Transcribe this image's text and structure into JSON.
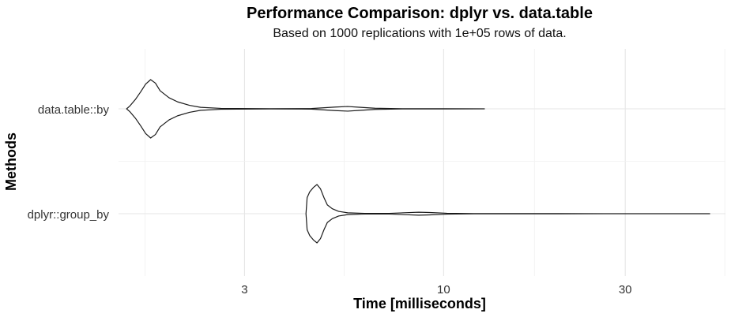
{
  "chart_data": {
    "type": "violin",
    "title": "Performance Comparison: dplyr vs. data.table",
    "subtitle": "Based on 1000 replications with 1e+05 rows of data.",
    "xlabel": "Time [milliseconds]",
    "ylabel": "Methods",
    "x_scale": "log10",
    "xlim": [
      1.4,
      55
    ],
    "x_ticks": [
      {
        "value": 3,
        "label": "3"
      },
      {
        "value": 10,
        "label": "10"
      },
      {
        "value": 30,
        "label": "30"
      }
    ],
    "categories": [
      "data.table::by",
      "dplyr::group_by"
    ],
    "series": [
      {
        "category": "data.table::by",
        "min": 1.47,
        "max": 12.8,
        "profile": [
          [
            1.47,
            0
          ],
          [
            1.5,
            0.1
          ],
          [
            1.55,
            0.32
          ],
          [
            1.6,
            0.58
          ],
          [
            1.65,
            0.85
          ],
          [
            1.7,
            1.0
          ],
          [
            1.75,
            0.88
          ],
          [
            1.8,
            0.62
          ],
          [
            1.9,
            0.38
          ],
          [
            2.0,
            0.24
          ],
          [
            2.15,
            0.12
          ],
          [
            2.3,
            0.05
          ],
          [
            2.6,
            0.015
          ],
          [
            3.5,
            0.005
          ],
          [
            4.5,
            0.01
          ],
          [
            5.2,
            0.06
          ],
          [
            5.6,
            0.08
          ],
          [
            6.0,
            0.055
          ],
          [
            6.6,
            0.02
          ],
          [
            7.5,
            0.006
          ],
          [
            10,
            0.004
          ],
          [
            12.8,
            0
          ]
        ]
      },
      {
        "category": "dplyr::group_by",
        "min": 4.35,
        "max": 50,
        "profile": [
          [
            4.35,
            0
          ],
          [
            4.38,
            0.55
          ],
          [
            4.45,
            0.75
          ],
          [
            4.55,
            0.9
          ],
          [
            4.65,
            1.0
          ],
          [
            4.75,
            0.85
          ],
          [
            4.85,
            0.55
          ],
          [
            4.95,
            0.3
          ],
          [
            5.1,
            0.17
          ],
          [
            5.3,
            0.08
          ],
          [
            5.6,
            0.03
          ],
          [
            6.2,
            0.012
          ],
          [
            7.2,
            0.012
          ],
          [
            8.0,
            0.035
          ],
          [
            8.6,
            0.05
          ],
          [
            9.2,
            0.04
          ],
          [
            10.2,
            0.015
          ],
          [
            12,
            0.005
          ],
          [
            20,
            0.003
          ],
          [
            50,
            0
          ]
        ]
      }
    ],
    "grid": true,
    "legend": "none"
  }
}
